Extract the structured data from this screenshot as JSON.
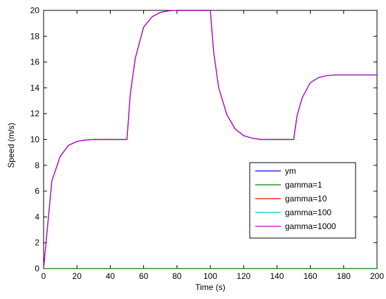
{
  "chart_data": {
    "type": "line",
    "xlabel": "Time (s)",
    "ylabel": "Speed (m/s)",
    "xlim": [
      0,
      200
    ],
    "ylim": [
      0,
      20
    ],
    "x_ticks": [
      0,
      20,
      40,
      60,
      80,
      100,
      120,
      140,
      160,
      180,
      200
    ],
    "y_ticks": [
      0,
      2,
      4,
      6,
      8,
      10,
      12,
      14,
      16,
      18,
      20
    ],
    "grid": false,
    "legend_position": "right-middle",
    "series": [
      {
        "name": "ym",
        "color": "#0000ff",
        "x": [
          0,
          5,
          10,
          15,
          20,
          25,
          30,
          40,
          50,
          52,
          55,
          60,
          65,
          70,
          75,
          80,
          90,
          100,
          102,
          105,
          110,
          115,
          120,
          125,
          130,
          140,
          150,
          152,
          155,
          160,
          165,
          170,
          175,
          180,
          190,
          200
        ],
        "y": [
          0,
          6.8,
          8.7,
          9.55,
          9.85,
          9.95,
          10,
          10,
          10,
          13.5,
          16.3,
          18.7,
          19.5,
          19.85,
          19.97,
          20,
          20,
          20,
          16.8,
          14.0,
          11.9,
          10.8,
          10.3,
          10.1,
          10.0,
          10,
          10,
          11.8,
          13.2,
          14.4,
          14.8,
          14.95,
          15,
          15,
          15,
          15
        ]
      },
      {
        "name": "gamma=1",
        "color": "#008000",
        "x": [
          0,
          200
        ],
        "y": [
          0,
          0
        ]
      },
      {
        "name": "gamma=10",
        "color": "#ff0000",
        "x": [
          0,
          5,
          10,
          15,
          20,
          25,
          30,
          40,
          50,
          52,
          55,
          60,
          65,
          70,
          75,
          80,
          90,
          100,
          102,
          105,
          110,
          115,
          120,
          125,
          130,
          140,
          150,
          152,
          155,
          160,
          165,
          170,
          175,
          180,
          190,
          200
        ],
        "y": [
          0,
          6.8,
          8.7,
          9.55,
          9.85,
          9.95,
          10,
          10,
          10,
          13.5,
          16.3,
          18.7,
          19.5,
          19.85,
          19.97,
          20,
          20,
          20,
          16.8,
          14.0,
          11.9,
          10.8,
          10.3,
          10.1,
          10.0,
          10,
          10,
          11.8,
          13.2,
          14.4,
          14.8,
          14.95,
          15,
          15,
          15,
          15
        ]
      },
      {
        "name": "gamma=100",
        "color": "#00bfbf",
        "x": [
          0,
          5,
          10,
          15,
          20,
          25,
          30,
          40,
          50,
          52,
          55,
          60,
          65,
          70,
          75,
          80,
          90,
          100,
          102,
          105,
          110,
          115,
          120,
          125,
          130,
          140,
          150,
          152,
          155,
          160,
          165,
          170,
          175,
          180,
          190,
          200
        ],
        "y": [
          0,
          6.8,
          8.7,
          9.55,
          9.85,
          9.95,
          10,
          10,
          10,
          13.5,
          16.3,
          18.7,
          19.5,
          19.85,
          19.97,
          20,
          20,
          20,
          16.8,
          14.0,
          11.9,
          10.8,
          10.3,
          10.1,
          10.0,
          10,
          10,
          11.8,
          13.2,
          14.4,
          14.8,
          14.95,
          15,
          15,
          15,
          15
        ]
      },
      {
        "name": "gamma=1000",
        "color": "#bf00bf",
        "x": [
          0,
          5,
          10,
          15,
          20,
          25,
          30,
          40,
          50,
          52,
          55,
          60,
          65,
          70,
          75,
          80,
          90,
          100,
          102,
          105,
          110,
          115,
          120,
          125,
          130,
          140,
          150,
          152,
          155,
          160,
          165,
          170,
          175,
          180,
          190,
          200
        ],
        "y": [
          0,
          6.8,
          8.7,
          9.55,
          9.85,
          9.95,
          10,
          10,
          10,
          13.5,
          16.3,
          18.7,
          19.5,
          19.85,
          19.97,
          20,
          20,
          20,
          16.8,
          14.0,
          11.9,
          10.8,
          10.3,
          10.1,
          10.0,
          10,
          10,
          11.8,
          13.2,
          14.4,
          14.8,
          14.95,
          15,
          15,
          15,
          15
        ]
      }
    ]
  }
}
